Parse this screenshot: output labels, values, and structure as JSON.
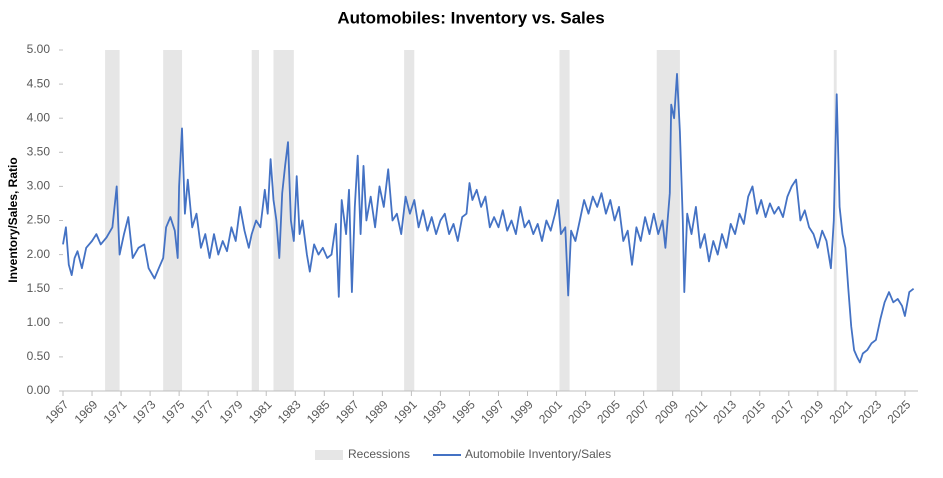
{
  "chart_data": {
    "type": "line",
    "title": "Automobiles: Inventory vs. Sales",
    "y_label": "Inventory/Sales, Ratio",
    "xlim": [
      1967,
      2025.9
    ],
    "xticks": [
      1967,
      1969,
      1971,
      1973,
      1975,
      1977,
      1979,
      1981,
      1983,
      1985,
      1987,
      1989,
      1991,
      1993,
      1995,
      1997,
      1999,
      2001,
      2003,
      2005,
      2007,
      2009,
      2011,
      2013,
      2015,
      2017,
      2019,
      2021,
      2023,
      2025
    ],
    "ylim": [
      0,
      5
    ],
    "yticks": [
      {
        "value": 0,
        "label": "0.00"
      },
      {
        "value": 0.5,
        "label": "0.50"
      },
      {
        "value": 1,
        "label": "1.00"
      },
      {
        "value": 1.5,
        "label": "1.50"
      },
      {
        "value": 2,
        "label": "2.00"
      },
      {
        "value": 2.5,
        "label": "2.50"
      },
      {
        "value": 3,
        "label": "3.00"
      },
      {
        "value": 3.5,
        "label": "3.50"
      },
      {
        "value": 4,
        "label": "4.00"
      },
      {
        "value": 4.5,
        "label": "4.50"
      },
      {
        "value": 5,
        "label": "5.00"
      }
    ],
    "legend": "bottom",
    "series": [
      {
        "name": "Recessions",
        "color": "#e6e6e6",
        "ranges": [
          [
            1969.9,
            1970.9
          ],
          [
            1973.9,
            1975.2
          ],
          [
            1980.0,
            1980.5
          ],
          [
            1981.5,
            1982.9
          ],
          [
            1990.5,
            1991.2
          ],
          [
            2001.2,
            2001.9
          ],
          [
            2007.9,
            2009.5
          ],
          [
            2020.1,
            2020.3
          ]
        ]
      },
      {
        "name": "Automobile Inventory/Sales",
        "color": "#4472c4",
        "x": [
          1967.0,
          1967.2,
          1967.4,
          1967.6,
          1967.8,
          1968.0,
          1968.3,
          1968.6,
          1969.0,
          1969.3,
          1969.6,
          1970.0,
          1970.4,
          1970.7,
          1970.9,
          1971.2,
          1971.5,
          1971.8,
          1972.2,
          1972.6,
          1972.9,
          1973.3,
          1973.6,
          1973.9,
          1974.1,
          1974.4,
          1974.7,
          1974.9,
          1975.0,
          1975.2,
          1975.4,
          1975.6,
          1975.9,
          1976.2,
          1976.5,
          1976.8,
          1977.1,
          1977.4,
          1977.7,
          1978.0,
          1978.3,
          1978.6,
          1978.9,
          1979.2,
          1979.5,
          1979.8,
          1980.0,
          1980.3,
          1980.6,
          1980.9,
          1981.1,
          1981.3,
          1981.5,
          1981.7,
          1981.9,
          1982.1,
          1982.3,
          1982.5,
          1982.7,
          1982.9,
          1983.1,
          1983.3,
          1983.5,
          1983.8,
          1984.0,
          1984.3,
          1984.6,
          1984.9,
          1985.2,
          1985.5,
          1985.8,
          1986.0,
          1986.2,
          1986.5,
          1986.7,
          1986.9,
          1987.1,
          1987.3,
          1987.5,
          1987.7,
          1987.9,
          1988.2,
          1988.5,
          1988.8,
          1989.1,
          1989.4,
          1989.7,
          1990.0,
          1990.3,
          1990.6,
          1990.9,
          1991.2,
          1991.5,
          1991.8,
          1992.1,
          1992.4,
          1992.7,
          1993.0,
          1993.3,
          1993.6,
          1993.9,
          1994.2,
          1994.5,
          1994.8,
          1995.0,
          1995.2,
          1995.5,
          1995.8,
          1996.1,
          1996.4,
          1996.7,
          1997.0,
          1997.3,
          1997.6,
          1997.9,
          1998.2,
          1998.5,
          1998.8,
          1999.1,
          1999.4,
          1999.7,
          2000.0,
          2000.3,
          2000.6,
          2000.9,
          2001.1,
          2001.3,
          2001.6,
          2001.8,
          2002.0,
          2002.3,
          2002.6,
          2002.9,
          2003.2,
          2003.5,
          2003.8,
          2004.1,
          2004.4,
          2004.7,
          2005.0,
          2005.3,
          2005.6,
          2005.9,
          2006.2,
          2006.5,
          2006.8,
          2007.1,
          2007.4,
          2007.7,
          2008.0,
          2008.3,
          2008.5,
          2008.8,
          2008.9,
          2009.1,
          2009.3,
          2009.5,
          2009.7,
          2009.8,
          2010.0,
          2010.3,
          2010.6,
          2010.9,
          2011.2,
          2011.5,
          2011.8,
          2012.1,
          2012.4,
          2012.7,
          2013.0,
          2013.3,
          2013.6,
          2013.9,
          2014.2,
          2014.5,
          2014.8,
          2015.1,
          2015.4,
          2015.7,
          2016.0,
          2016.3,
          2016.6,
          2016.9,
          2017.2,
          2017.5,
          2017.8,
          2018.1,
          2018.4,
          2018.7,
          2019.0,
          2019.3,
          2019.6,
          2019.9,
          2020.1,
          2020.3,
          2020.5,
          2020.7,
          2020.9,
          2021.1,
          2021.3,
          2021.5,
          2021.7,
          2021.9,
          2022.1,
          2022.4,
          2022.7,
          2023.0,
          2023.3,
          2023.6,
          2023.9,
          2024.2,
          2024.5,
          2024.8,
          2025.0,
          2025.3,
          2025.6
        ],
        "values": [
          2.15,
          2.4,
          1.85,
          1.7,
          1.95,
          2.05,
          1.8,
          2.1,
          2.2,
          2.3,
          2.15,
          2.25,
          2.4,
          3.0,
          2.0,
          2.3,
          2.55,
          1.95,
          2.1,
          2.15,
          1.8,
          1.65,
          1.8,
          1.95,
          2.4,
          2.55,
          2.35,
          1.95,
          3.0,
          3.85,
          2.6,
          3.1,
          2.4,
          2.6,
          2.1,
          2.3,
          1.95,
          2.3,
          2.0,
          2.2,
          2.05,
          2.4,
          2.2,
          2.7,
          2.35,
          2.1,
          2.3,
          2.5,
          2.4,
          2.95,
          2.6,
          3.4,
          2.8,
          2.5,
          1.95,
          2.9,
          3.3,
          3.65,
          2.5,
          2.2,
          3.15,
          2.3,
          2.5,
          2.0,
          1.75,
          2.15,
          2.0,
          2.1,
          1.95,
          2.0,
          2.45,
          1.38,
          2.8,
          2.3,
          2.95,
          1.45,
          2.7,
          3.45,
          2.3,
          3.3,
          2.5,
          2.85,
          2.4,
          3.0,
          2.7,
          3.25,
          2.5,
          2.6,
          2.3,
          2.85,
          2.6,
          2.8,
          2.4,
          2.65,
          2.35,
          2.55,
          2.3,
          2.5,
          2.6,
          2.3,
          2.45,
          2.2,
          2.55,
          2.6,
          3.05,
          2.8,
          2.95,
          2.7,
          2.85,
          2.4,
          2.55,
          2.4,
          2.65,
          2.35,
          2.5,
          2.3,
          2.7,
          2.4,
          2.5,
          2.3,
          2.45,
          2.2,
          2.5,
          2.35,
          2.6,
          2.8,
          2.3,
          2.4,
          1.4,
          2.35,
          2.2,
          2.5,
          2.8,
          2.6,
          2.85,
          2.7,
          2.9,
          2.6,
          2.8,
          2.5,
          2.7,
          2.2,
          2.35,
          1.85,
          2.4,
          2.2,
          2.55,
          2.3,
          2.6,
          2.3,
          2.5,
          2.1,
          2.9,
          4.2,
          4.0,
          4.65,
          3.8,
          2.5,
          1.45,
          2.6,
          2.3,
          2.7,
          2.1,
          2.3,
          1.9,
          2.2,
          2.0,
          2.3,
          2.1,
          2.45,
          2.3,
          2.6,
          2.45,
          2.85,
          3.0,
          2.6,
          2.8,
          2.55,
          2.75,
          2.6,
          2.7,
          2.55,
          2.85,
          3.0,
          3.1,
          2.5,
          2.65,
          2.4,
          2.3,
          2.1,
          2.35,
          2.2,
          1.8,
          2.5,
          4.35,
          2.7,
          2.3,
          2.1,
          1.5,
          0.95,
          0.6,
          0.5,
          0.42,
          0.55,
          0.6,
          0.7,
          0.75,
          1.05,
          1.3,
          1.45,
          1.3,
          1.35,
          1.25,
          1.1,
          1.45,
          1.5
        ]
      }
    ]
  }
}
